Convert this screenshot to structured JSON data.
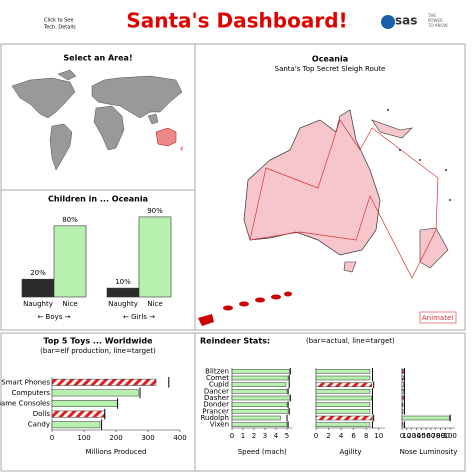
{
  "header": {
    "link_lines": [
      "Click to See",
      "Tech. Details"
    ],
    "title": "Santa's Dashboard!",
    "logo": "sas",
    "tagline": [
      "THE",
      "POWER",
      "TO KNOW."
    ]
  },
  "area_panel": {
    "title": "Select an Area!"
  },
  "route_panel": {
    "title": "Oceania",
    "subtitle": "Santa's Top Secret Sleigh Route",
    "button": "Animate!"
  },
  "children_panel": {
    "title": "Children in ... Oceania",
    "groups": [
      "← Boys →",
      "← Girls →"
    ]
  },
  "toys_panel": {
    "title": "Top 5 Toys ... Worldwide",
    "subtitle": "(bar=elf production, line=target)"
  },
  "reindeer_panel": {
    "title": "Reindeer Stats:",
    "subtitle": "(bar=actual, line=target)"
  },
  "chart_data": [
    {
      "type": "bar",
      "categories": [
        "Naughty",
        "Nice",
        "Naughty",
        "Nice"
      ],
      "values": [
        20,
        80,
        10,
        90
      ],
      "value_labels": [
        "20%",
        "80%",
        "10%",
        "90%"
      ],
      "colors": [
        "#2b2b2b",
        "#b8f0b0",
        "#2b2b2b",
        "#b8f0b0"
      ],
      "ylim": [
        0,
        100
      ]
    },
    {
      "type": "hbar",
      "categories": [
        "Smart Phones",
        "Computers",
        "Game Consoles",
        "Dolls",
        "Candy"
      ],
      "values": [
        325,
        270,
        205,
        165,
        150
      ],
      "targets": [
        365,
        275,
        205,
        165,
        155
      ],
      "colors": [
        "#e02020",
        "#b8f0b0",
        "#b8f0b0",
        "#e02020",
        "#b8f0b0"
      ],
      "xlim": [
        0,
        400
      ],
      "xticks": [
        0,
        100,
        200,
        300,
        400
      ],
      "xlabel": "Millions Produced"
    },
    {
      "type": "hbar",
      "categories": [
        "Blitzen",
        "Comet",
        "Cupid",
        "Dancer",
        "Dasher",
        "Donder",
        "Prancer",
        "Rudolph",
        "Vixen"
      ],
      "values": [
        5.2,
        5.1,
        4.9,
        5.0,
        5.3,
        5.0,
        5.1,
        4.4,
        5.0
      ],
      "targets": [
        5.3,
        5.2,
        5.2,
        5.1,
        5.3,
        5.1,
        5.2,
        5.0,
        5.1
      ],
      "colors": [
        "#b8f0b0",
        "#b8f0b0",
        "#b8f0b0",
        "#b8f0b0",
        "#b8f0b0",
        "#b8f0b0",
        "#b8f0b0",
        "#b8f0b0",
        "#b8f0b0"
      ],
      "xlim": [
        0,
        5.5
      ],
      "xticks": [
        0,
        1,
        2,
        3,
        4,
        5
      ],
      "xlabel": "Speed (mach)"
    },
    {
      "type": "hbar",
      "values": [
        8.6,
        8.6,
        8.9,
        8.6,
        8.9,
        8.6,
        8.6,
        9.0,
        8.6
      ],
      "targets": [
        9.0,
        9.0,
        9.2,
        9.0,
        9.0,
        9.0,
        9.0,
        9.2,
        9.0
      ],
      "colors": [
        "#b8f0b0",
        "#b8f0b0",
        "#e02020",
        "#b8f0b0",
        "#b8f0b0",
        "#b8f0b0",
        "#b8f0b0",
        "#e02020",
        "#b8f0b0"
      ],
      "xlim": [
        0,
        11
      ],
      "xticks": [
        0,
        2,
        4,
        6,
        8,
        10
      ],
      "xlabel": "Agility"
    },
    {
      "type": "hbar",
      "values": [
        3,
        3,
        3,
        3,
        3,
        2,
        2,
        98,
        2
      ],
      "targets": [
        5,
        5,
        5,
        5,
        5,
        5,
        5,
        100,
        5
      ],
      "colors": [
        "#e02020",
        "#e02020",
        "#e02020",
        "#e02020",
        "#e02020",
        "#e02020",
        "#e02020",
        "#b8f0b0",
        "#e02020"
      ],
      "xlim": [
        0,
        110
      ],
      "xticks": [
        0,
        10,
        20,
        30,
        40,
        50,
        60,
        70,
        80,
        90,
        100
      ],
      "xlabel": "Nose Luminosity"
    }
  ]
}
